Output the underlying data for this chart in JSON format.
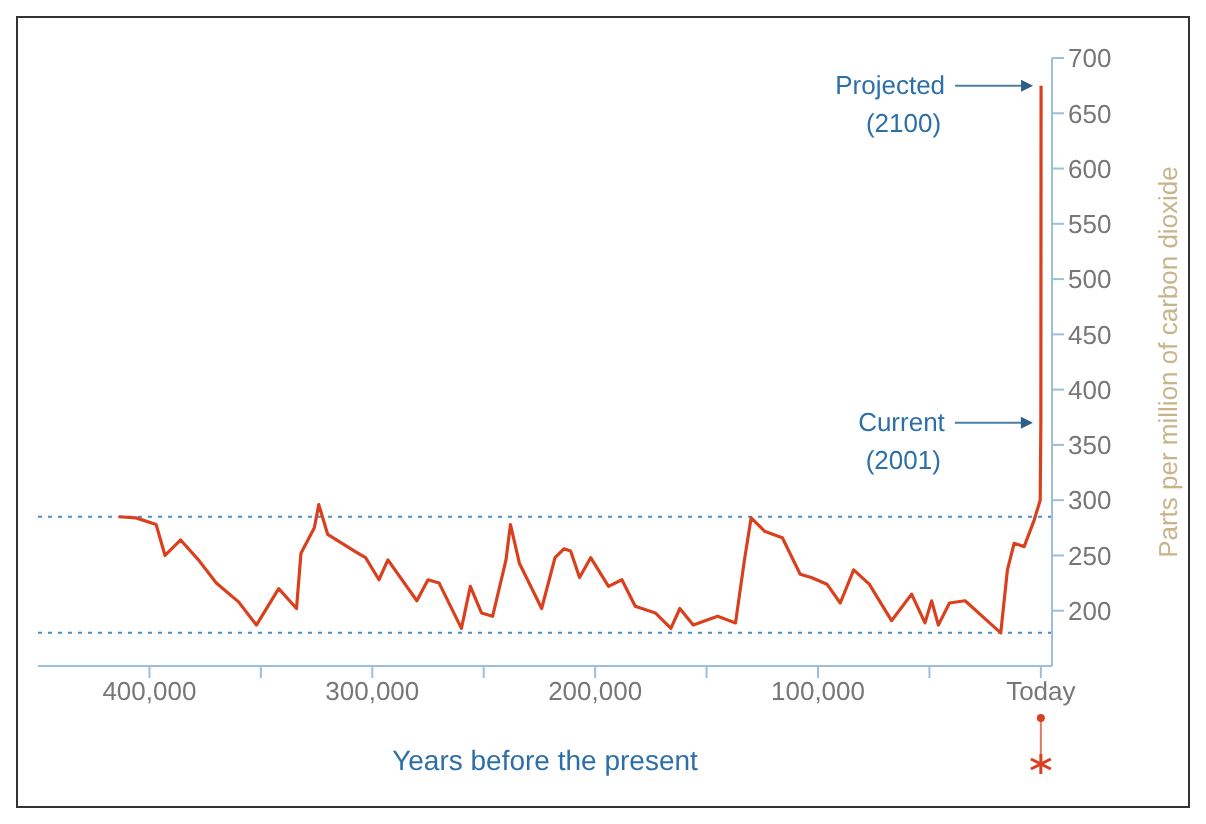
{
  "chart_data": {
    "type": "line",
    "xlabel": "Years before the present",
    "ylabel": "Parts per million of carbon dioxide",
    "xlim": [
      450000,
      -5000
    ],
    "xticks": [
      {
        "value": 400000,
        "label": "400,000"
      },
      {
        "value": 350000,
        "label": null
      },
      {
        "value": 300000,
        "label": "300,000"
      },
      {
        "value": 250000,
        "label": null
      },
      {
        "value": 200000,
        "label": "200,000"
      },
      {
        "value": 150000,
        "label": null
      },
      {
        "value": 100000,
        "label": "100,000"
      },
      {
        "value": 50000,
        "label": null
      },
      {
        "value": 0,
        "label": "Today"
      }
    ],
    "ylim": [
      150,
      700
    ],
    "yticks": [
      200,
      250,
      300,
      350,
      400,
      450,
      500,
      550,
      600,
      650,
      700
    ],
    "marker": "none",
    "line_style": "solid",
    "x": [
      413700,
      406000,
      397000,
      393000,
      386000,
      378000,
      370000,
      360000,
      352000,
      342000,
      334000,
      332000,
      326000,
      324000,
      320000,
      308000,
      303000,
      297000,
      293000,
      280000,
      275000,
      270000,
      260000,
      256000,
      251000,
      246000,
      240000,
      238000,
      234000,
      224000,
      218000,
      214000,
      211000,
      207000,
      202000,
      194000,
      188000,
      182000,
      173000,
      166000,
      162000,
      156000,
      145000,
      137000,
      133000,
      130000,
      124000,
      116000,
      108000,
      103000,
      96000,
      90000,
      84000,
      77000,
      67000,
      58000,
      52000,
      49000,
      46000,
      41000,
      34000,
      23000,
      18000,
      15000,
      12000,
      7500,
      3000,
      300,
      0,
      -100
    ],
    "series": [
      {
        "color": "#d9411e",
        "values": [
          285,
          284,
          278,
          250,
          264,
          246,
          225,
          208,
          187,
          220,
          202,
          252,
          275,
          296,
          269,
          254,
          248,
          228,
          246,
          209,
          228,
          225,
          184,
          222,
          198,
          195,
          246,
          278,
          243,
          202,
          248,
          256,
          254,
          230,
          248,
          222,
          228,
          204,
          198,
          184,
          202,
          187,
          195,
          189,
          246,
          284,
          272,
          266,
          233,
          230,
          224,
          207,
          237,
          224,
          191,
          215,
          189,
          209,
          187,
          207,
          209,
          189,
          180,
          237,
          261,
          258,
          282,
          300,
          370,
          675
        ]
      }
    ],
    "ref_lines": [
      {
        "axis": "y",
        "value": 285,
        "color": "#4a90c8",
        "line_style": "dotted"
      },
      {
        "axis": "y",
        "value": 180,
        "color": "#4a90c8",
        "line_style": "dotted"
      }
    ],
    "annotations": [
      {
        "text": "Projected (2100)",
        "x": -100,
        "y": 675
      },
      {
        "text": "Current (2001)",
        "x": 0,
        "y": 370
      }
    ]
  }
}
